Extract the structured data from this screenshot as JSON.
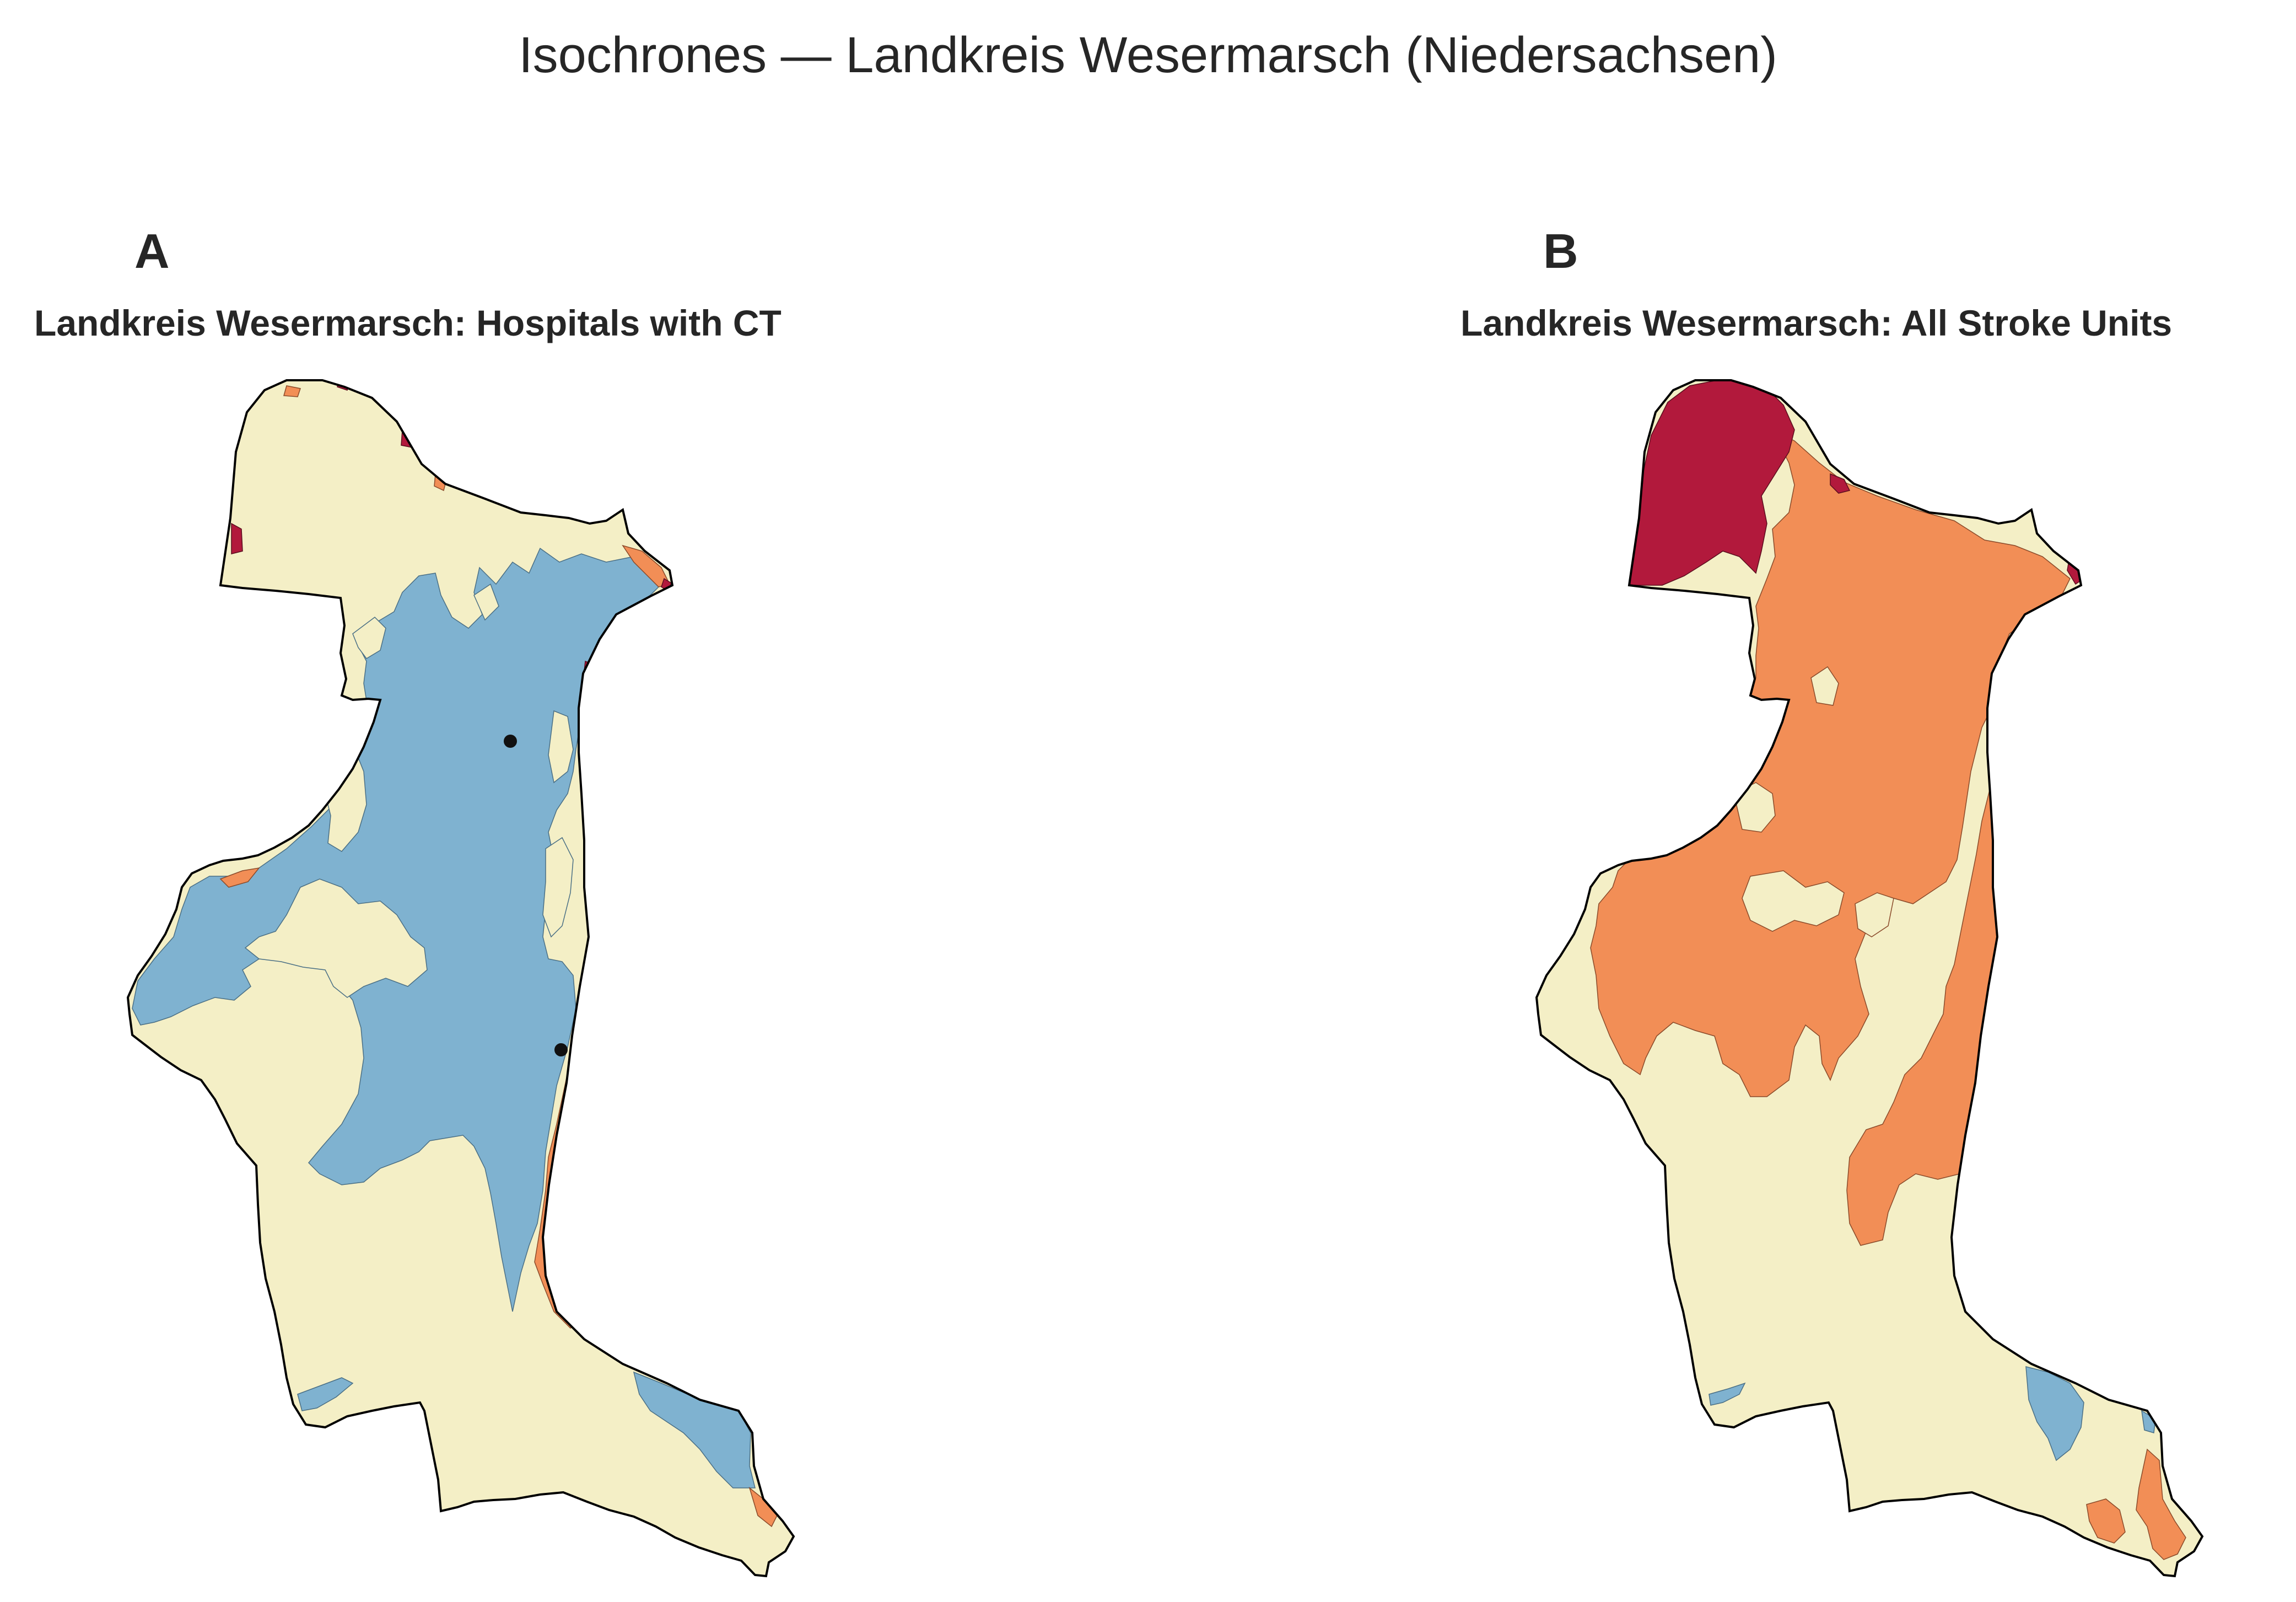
{
  "suptitle": "Isochrones — Landkreis Wesermarsch (Niedersachsen)",
  "colors": {
    "band_lt15": "#7fb2d0",
    "band_15_30": "#f4efc6",
    "band_30_45": "#f28e56",
    "band_gt45": "#b2193c",
    "outline": "#000000",
    "facility": "#111111"
  },
  "panels": [
    {
      "letter": "A",
      "title": "Landkreis Wesermarsch: Hospitals with CT",
      "facilities_marked": 2
    },
    {
      "letter": "B",
      "title": "Landkreis Wesermarsch: All Stroke Units",
      "facilities_marked": 0
    }
  ]
}
